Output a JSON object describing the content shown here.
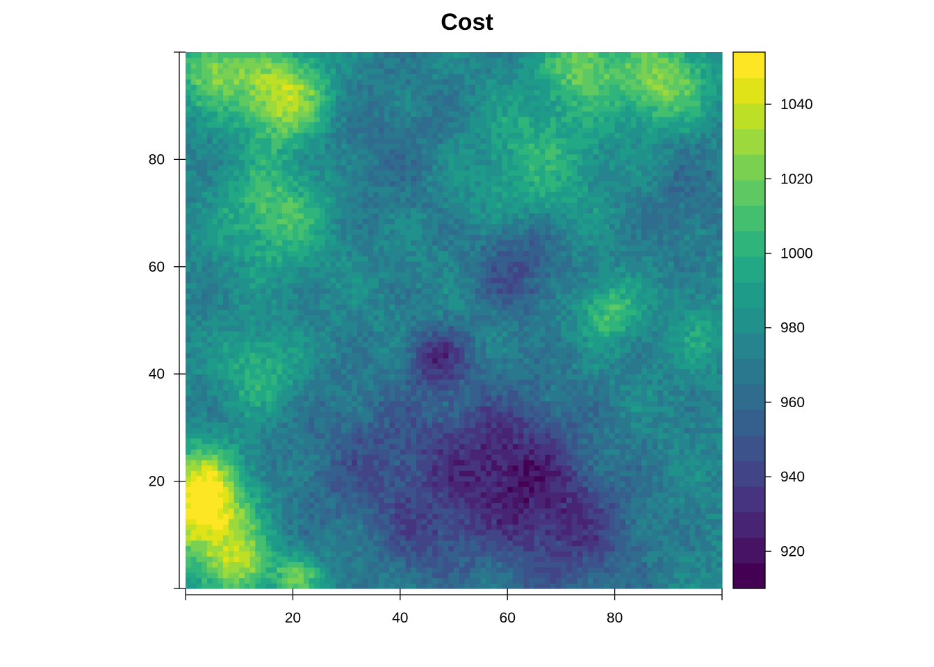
{
  "chart_data": {
    "type": "heatmap",
    "title": "Cost",
    "xlabel": "",
    "ylabel": "",
    "xlim": [
      0,
      100
    ],
    "ylim": [
      0,
      100
    ],
    "x_ticks": [
      20,
      40,
      60,
      80
    ],
    "y_ticks": [
      20,
      40,
      60,
      80
    ],
    "grid": false,
    "legend": "right",
    "colorbar": {
      "range": [
        910,
        1054
      ],
      "ticks": [
        920,
        940,
        960,
        980,
        1000,
        1020,
        1040
      ],
      "colors": [
        "#440154",
        "#471365",
        "#482475",
        "#463480",
        "#414487",
        "#3b528b",
        "#355f8d",
        "#2f6c8e",
        "#2a788e",
        "#25848e",
        "#21918c",
        "#1e9c89",
        "#22a884",
        "#2fb47c",
        "#44bf70",
        "#5ec962",
        "#7ad151",
        "#9bd93c",
        "#bddf26",
        "#dfe318",
        "#fde725"
      ]
    },
    "grid_size": [
      100,
      100
    ],
    "value_field": {
      "base": 975,
      "features": [
        {
          "x": 4,
          "y": 12,
          "radius": 6,
          "amplitude": 65
        },
        {
          "x": 3,
          "y": 20,
          "radius": 5,
          "amplitude": 50
        },
        {
          "x": 11,
          "y": 4,
          "radius": 4,
          "amplitude": 45
        },
        {
          "x": 21,
          "y": 2,
          "radius": 3,
          "amplitude": 40
        },
        {
          "x": 18,
          "y": 92,
          "radius": 6,
          "amplitude": 65
        },
        {
          "x": 5,
          "y": 97,
          "radius": 5,
          "amplitude": 45
        },
        {
          "x": 17,
          "y": 70,
          "radius": 7,
          "amplitude": 38
        },
        {
          "x": 14,
          "y": 41,
          "radius": 5,
          "amplitude": 30
        },
        {
          "x": 89,
          "y": 95,
          "radius": 6,
          "amplitude": 50
        },
        {
          "x": 74,
          "y": 98,
          "radius": 5,
          "amplitude": 40
        },
        {
          "x": 64,
          "y": 82,
          "radius": 10,
          "amplitude": 30
        },
        {
          "x": 79,
          "y": 52,
          "radius": 4,
          "amplitude": 35
        },
        {
          "x": 96,
          "y": 48,
          "radius": 5,
          "amplitude": 15
        },
        {
          "x": 59,
          "y": 23,
          "radius": 10,
          "amplitude": -48
        },
        {
          "x": 47,
          "y": 43,
          "radius": 4,
          "amplitude": -40
        },
        {
          "x": 62,
          "y": 60,
          "radius": 6,
          "amplitude": -30
        },
        {
          "x": 72,
          "y": 10,
          "radius": 9,
          "amplitude": -32
        },
        {
          "x": 35,
          "y": 23,
          "radius": 10,
          "amplitude": -25
        },
        {
          "x": 38,
          "y": 82,
          "radius": 10,
          "amplitude": -12
        },
        {
          "x": 58,
          "y": 88,
          "radius": 8,
          "amplitude": -10
        },
        {
          "x": 93,
          "y": 72,
          "radius": 7,
          "amplitude": -12
        },
        {
          "x": 45,
          "y": 8,
          "radius": 6,
          "amplitude": -20
        }
      ]
    }
  }
}
